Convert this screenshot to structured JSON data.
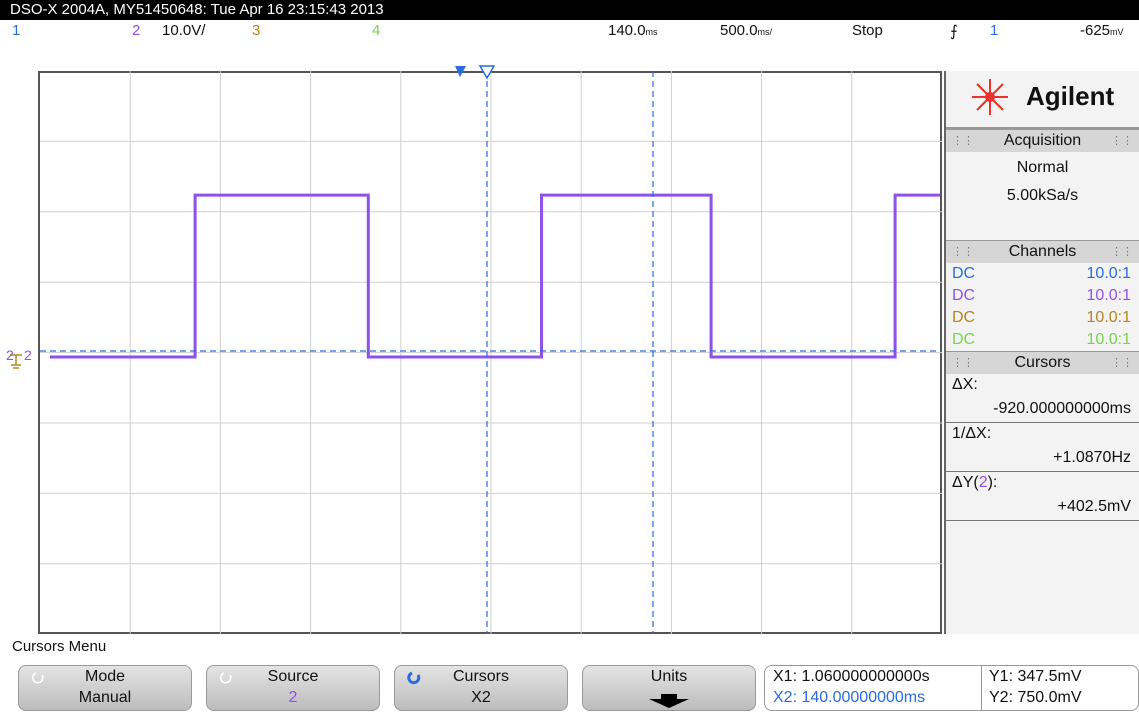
{
  "title_bar": "DSO-X 2004A, MY51450648: Tue Apr 16 23:15:43 2013",
  "status": {
    "ch1": "1",
    "ch2": "2",
    "ch2_scale": "10.0V/",
    "ch3": "3",
    "ch4": "4",
    "delay": "140.0",
    "delay_unit": "ms",
    "timebase": "500.0",
    "timebase_unit": "ms/",
    "run_state": "Stop",
    "trigger_source": "1",
    "trigger_level": "-625",
    "trigger_unit": "mV"
  },
  "ground_marker": "2",
  "panel": {
    "brand": "Agilent",
    "acquisition_title": "Acquisition",
    "acquisition_mode": "Normal",
    "sample_rate": "5.00kSa/s",
    "channels_title": "Channels",
    "channels": [
      {
        "coupling": "DC",
        "probe": "10.0:1",
        "color": "#2a6be0"
      },
      {
        "coupling": "DC",
        "probe": "10.0:1",
        "color": "#8f52e8"
      },
      {
        "coupling": "DC",
        "probe": "10.0:1",
        "color": "#b4861e"
      },
      {
        "coupling": "DC",
        "probe": "10.0:1",
        "color": "#7cd24e"
      }
    ],
    "cursors_title": "Cursors",
    "dx_label": "ΔX:",
    "dx_value": "-920.000000000ms",
    "inv_dx_label": "1/ΔX:",
    "inv_dx_value": "+1.0870Hz",
    "dy_label": "ΔY(",
    "dy_channel": "2",
    "dy_label_end": "):",
    "dy_value": "+402.5mV"
  },
  "menu": {
    "title": "Cursors Menu",
    "softkeys": [
      {
        "label": "Mode",
        "value": "Manual"
      },
      {
        "label": "Source",
        "value": "2"
      },
      {
        "label": "Cursors",
        "value": "X2"
      },
      {
        "label": "Units",
        "value": ""
      }
    ]
  },
  "readout": {
    "x1": "X1: 1.060000000000s",
    "x2": "X2: 140.00000000ms",
    "y1": "Y1: 347.5mV",
    "y2": "Y2: 750.0mV"
  },
  "colors": {
    "channel1": "#2a6be0",
    "channel2": "#8f52e8",
    "channel3": "#b4861e",
    "channel4": "#7cd24e",
    "cursor": "#2a6be0"
  },
  "waveform": {
    "channel": "2",
    "type": "square",
    "time_per_div_s": 0.5,
    "volts_per_div": 10.0,
    "level_high_div": 2.3,
    "level_low_div": 0.0,
    "edges_time_s": [
      -1.64,
      -0.68,
      0.28,
      1.22,
      2.24
    ],
    "first_level": "low"
  }
}
